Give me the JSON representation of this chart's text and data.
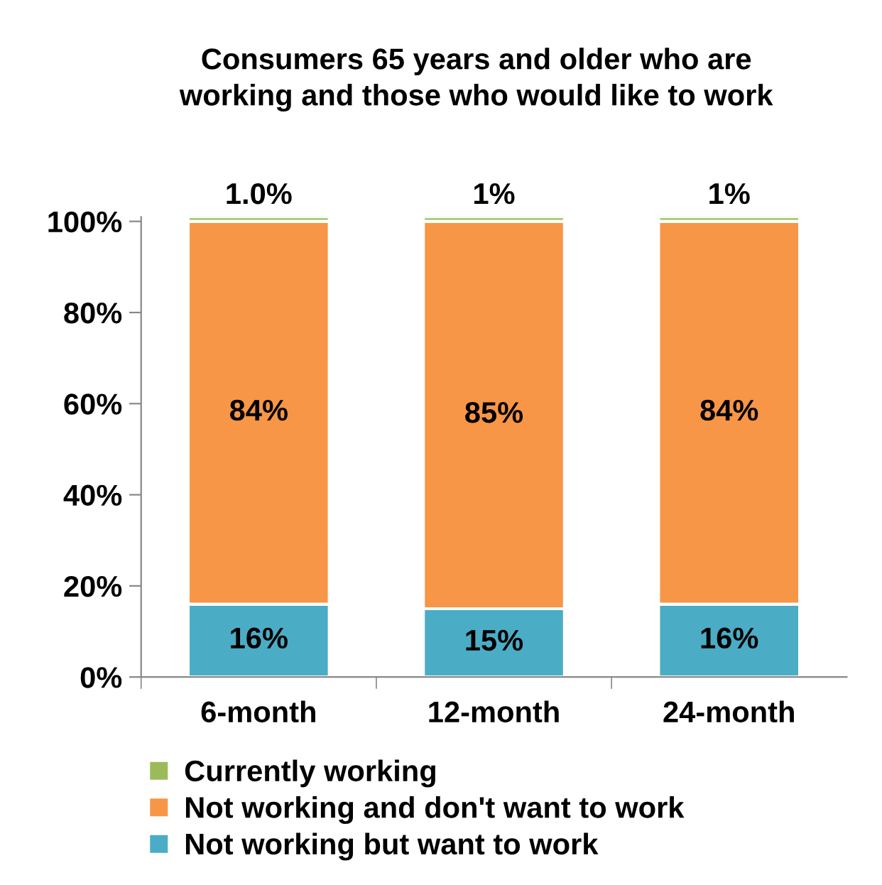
{
  "chart_data": {
    "type": "bar",
    "title": "Consumers 65 years and older who are\nworking and those who would like to work",
    "categories": [
      "6-month",
      "12-month",
      "24-month"
    ],
    "stacked": true,
    "series": [
      {
        "name": "Not working but want to work",
        "color": "#4bacc6",
        "values": [
          16,
          15,
          16
        ],
        "value_labels": [
          "16%",
          "15%",
          "16%"
        ]
      },
      {
        "name": "Not working and don't want to work",
        "color": "#f79646",
        "values": [
          84,
          85,
          84
        ],
        "value_labels": [
          "84%",
          "85%",
          "84%"
        ]
      },
      {
        "name": "Currently working",
        "color": "#9bbb59",
        "values": [
          1.0,
          1,
          1
        ],
        "value_labels": [
          "1.0%",
          "1%",
          "1%"
        ]
      }
    ],
    "ylim": [
      0,
      101
    ],
    "yticks": [
      {
        "value": 0,
        "label": "0%"
      },
      {
        "value": 20,
        "label": "20%"
      },
      {
        "value": 40,
        "label": "40%"
      },
      {
        "value": 60,
        "label": "60%"
      },
      {
        "value": 80,
        "label": "80%"
      },
      {
        "value": 100,
        "label": "100%"
      }
    ],
    "grid": false,
    "legend": "bottom"
  }
}
